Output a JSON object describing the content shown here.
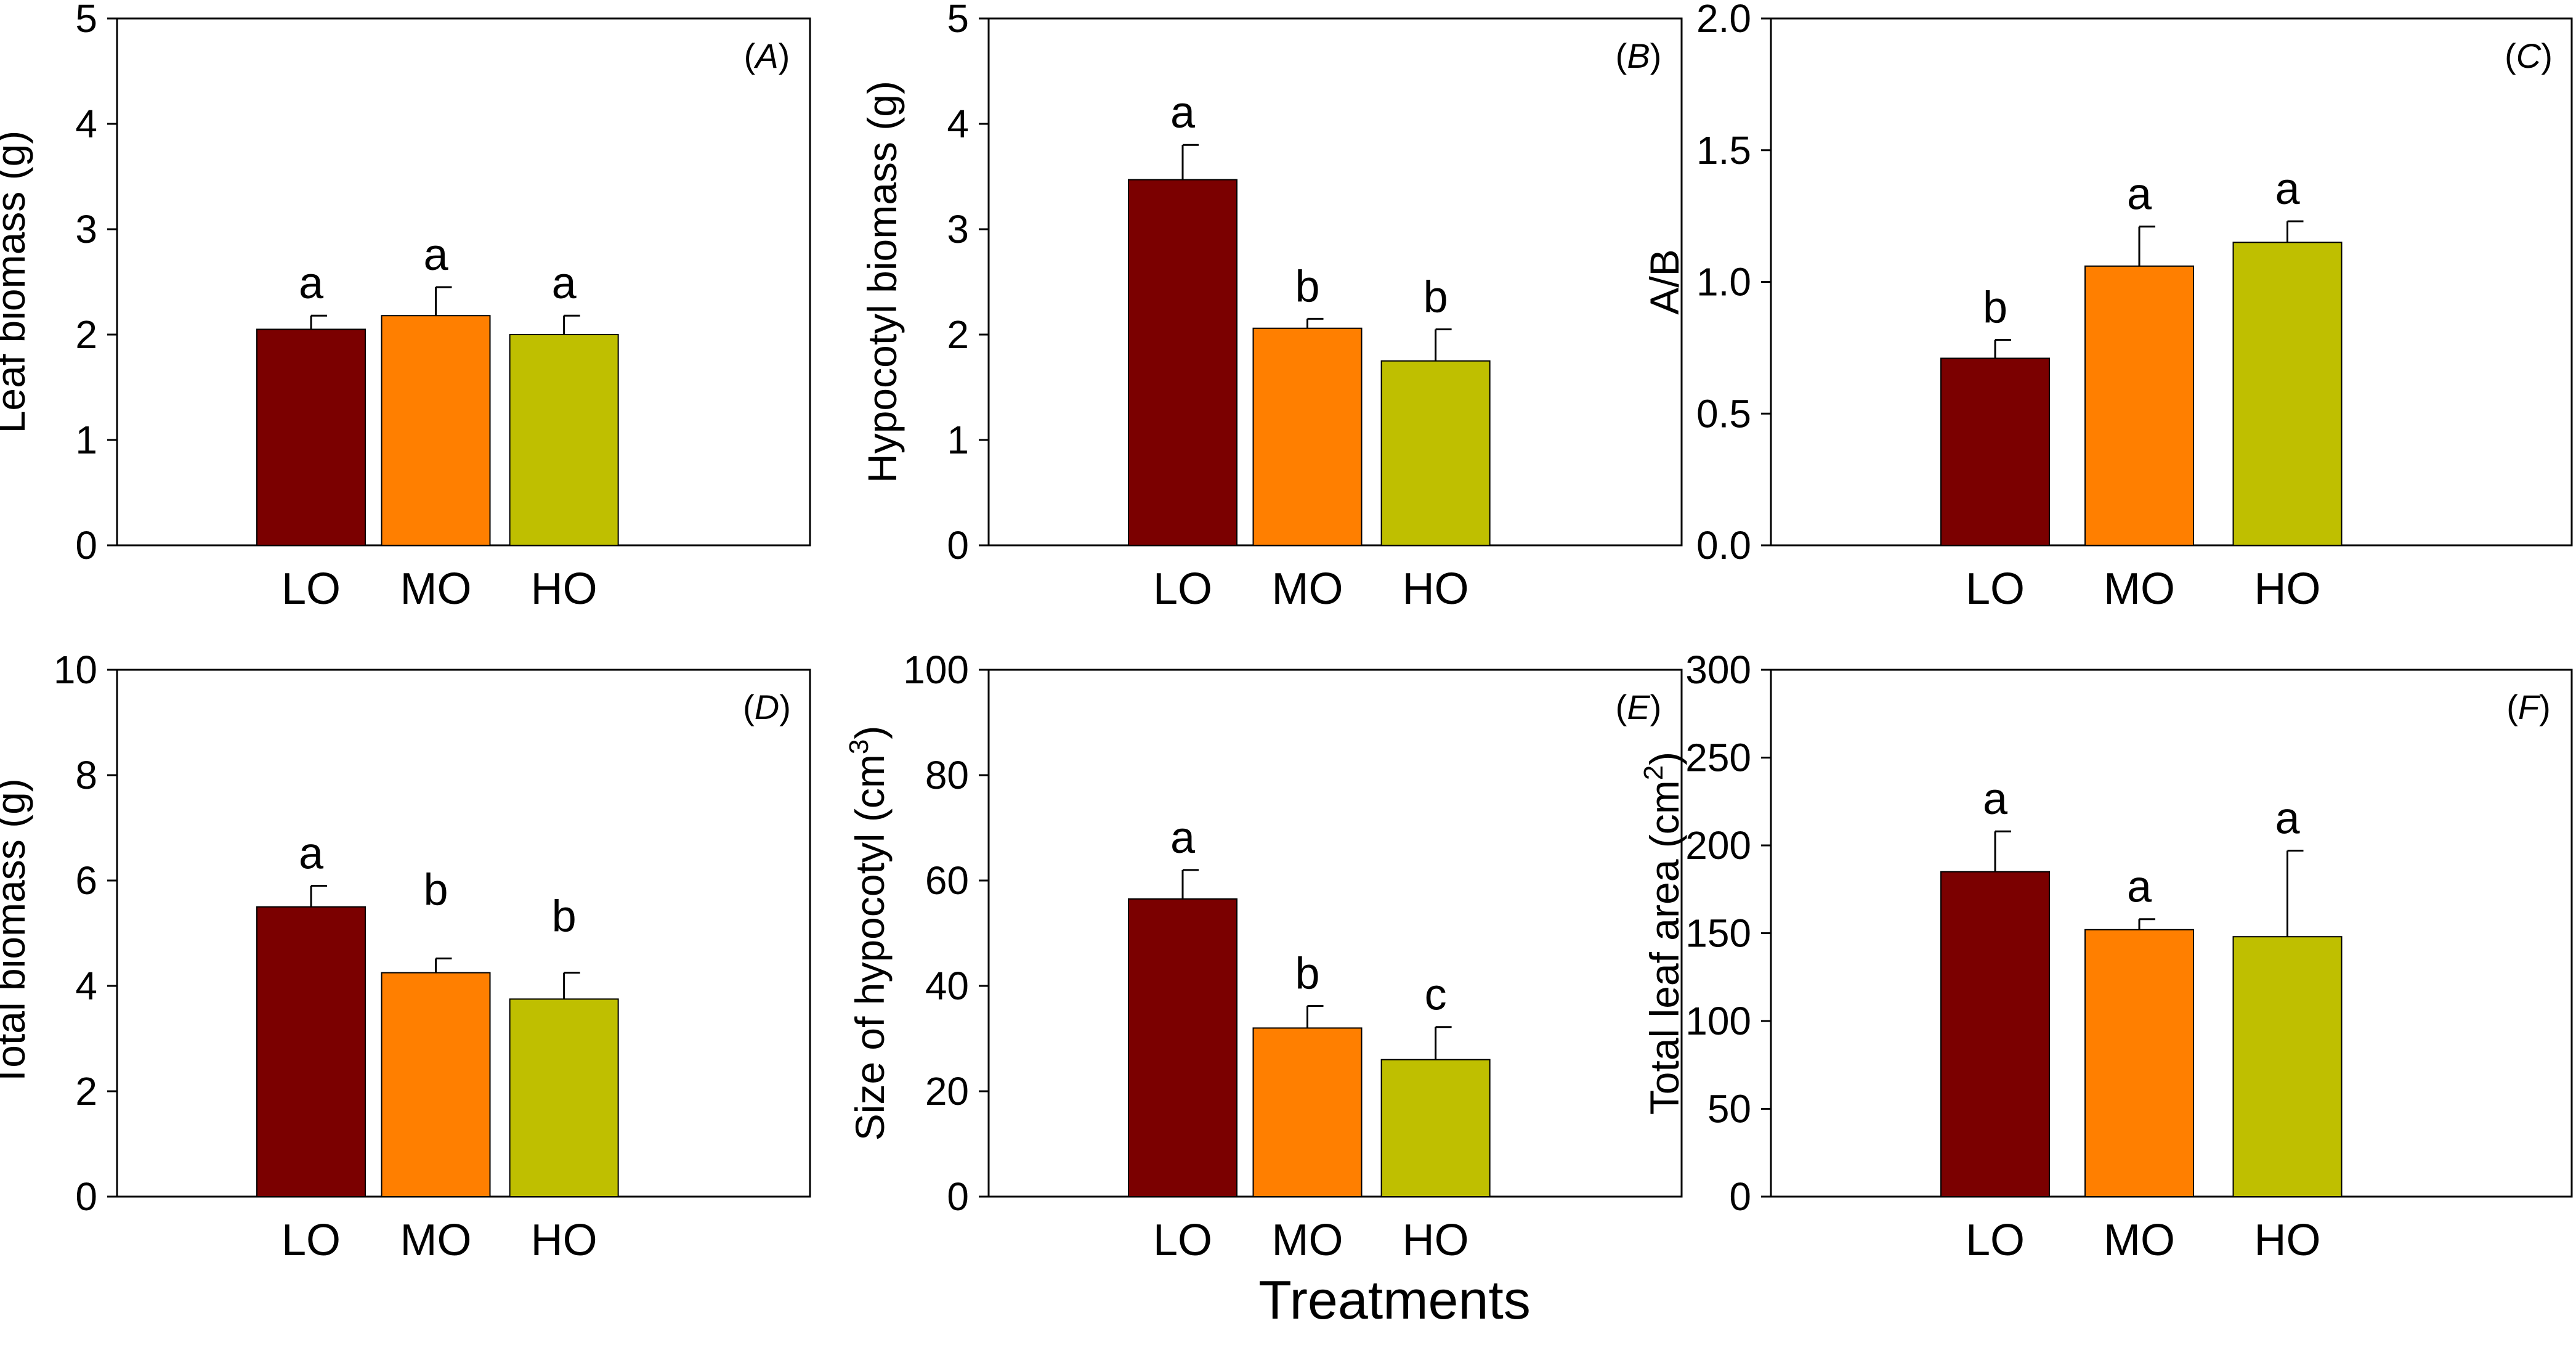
{
  "figure": {
    "x_title": "Treatments",
    "colors": {
      "LO": "#7b0000",
      "MO": "#ff7f00",
      "HO": "#bfbf00"
    }
  },
  "chart_data": [
    {
      "type": "bar",
      "panel": "A",
      "tag_letter": "A",
      "ylabel": "Leaf biomass (g)",
      "ylim": [
        0,
        5
      ],
      "yticks": [
        0,
        1,
        2,
        3,
        4,
        5
      ],
      "tick_labels": [
        "0",
        "1",
        "2",
        "3",
        "4",
        "5"
      ],
      "categories": [
        "LO",
        "MO",
        "HO"
      ],
      "values": [
        2.05,
        2.18,
        2.0
      ],
      "errors": [
        0.13,
        0.27,
        0.18
      ],
      "letters": [
        "a",
        "a",
        "a"
      ]
    },
    {
      "type": "bar",
      "panel": "B",
      "tag_letter": "B",
      "ylabel": "Hypocotyl biomass (g)",
      "ylim": [
        0,
        5
      ],
      "yticks": [
        0,
        1,
        2,
        3,
        4,
        5
      ],
      "tick_labels": [
        "0",
        "1",
        "2",
        "3",
        "4",
        "5"
      ],
      "categories": [
        "LO",
        "MO",
        "HO"
      ],
      "values": [
        3.47,
        2.06,
        1.75
      ],
      "errors": [
        0.33,
        0.09,
        0.3
      ],
      "letters": [
        "a",
        "b",
        "b"
      ]
    },
    {
      "type": "bar",
      "panel": "C",
      "tag_letter": "C",
      "ylabel": "A/B",
      "ylim": [
        0,
        2
      ],
      "yticks": [
        0,
        0.5,
        1,
        1.5,
        2
      ],
      "tick_labels": [
        "0.0",
        "0.5",
        "1.0",
        "1.5",
        "2.0"
      ],
      "categories": [
        "LO",
        "MO",
        "HO"
      ],
      "values": [
        0.71,
        1.06,
        1.15
      ],
      "errors": [
        0.07,
        0.15,
        0.08
      ],
      "letters": [
        "b",
        "a",
        "a"
      ]
    },
    {
      "type": "bar",
      "panel": "D",
      "tag_letter": "D",
      "ylabel": "Total biomass (g)",
      "ylim": [
        0,
        10
      ],
      "yticks": [
        0,
        2,
        4,
        6,
        8,
        10
      ],
      "tick_labels": [
        "0",
        "2",
        "4",
        "6",
        "8",
        "10"
      ],
      "categories": [
        "LO",
        "MO",
        "HO"
      ],
      "values": [
        5.5,
        4.25,
        3.75
      ],
      "errors": [
        0.4,
        0.27,
        0.5
      ],
      "letters": [
        "a",
        "b",
        "b"
      ]
    },
    {
      "type": "bar",
      "panel": "E",
      "tag_letter": "E",
      "ylabel": "Size of hypocotyl (cm",
      "ylabel_sup": "3",
      "ylabel_end": ")",
      "ylim": [
        0,
        100
      ],
      "yticks": [
        0,
        20,
        40,
        60,
        80,
        100
      ],
      "tick_labels": [
        "0",
        "20",
        "40",
        "60",
        "80",
        "100"
      ],
      "categories": [
        "LO",
        "MO",
        "HO"
      ],
      "values": [
        56.5,
        32,
        26
      ],
      "errors": [
        5.5,
        4.2,
        6.2
      ],
      "letters": [
        "a",
        "b",
        "c"
      ]
    },
    {
      "type": "bar",
      "panel": "F",
      "tag_letter": "F",
      "ylabel": "Total leaf area (cm",
      "ylabel_sup": "2",
      "ylabel_end": ")",
      "ylim": [
        0,
        300
      ],
      "yticks": [
        0,
        50,
        100,
        150,
        200,
        250,
        300
      ],
      "tick_labels": [
        "0",
        "50",
        "100",
        "150",
        "200",
        "250",
        "300"
      ],
      "categories": [
        "LO",
        "MO",
        "HO"
      ],
      "values": [
        185,
        152,
        148
      ],
      "errors": [
        23,
        6,
        49
      ],
      "letters": [
        "a",
        "a",
        "a"
      ]
    }
  ]
}
